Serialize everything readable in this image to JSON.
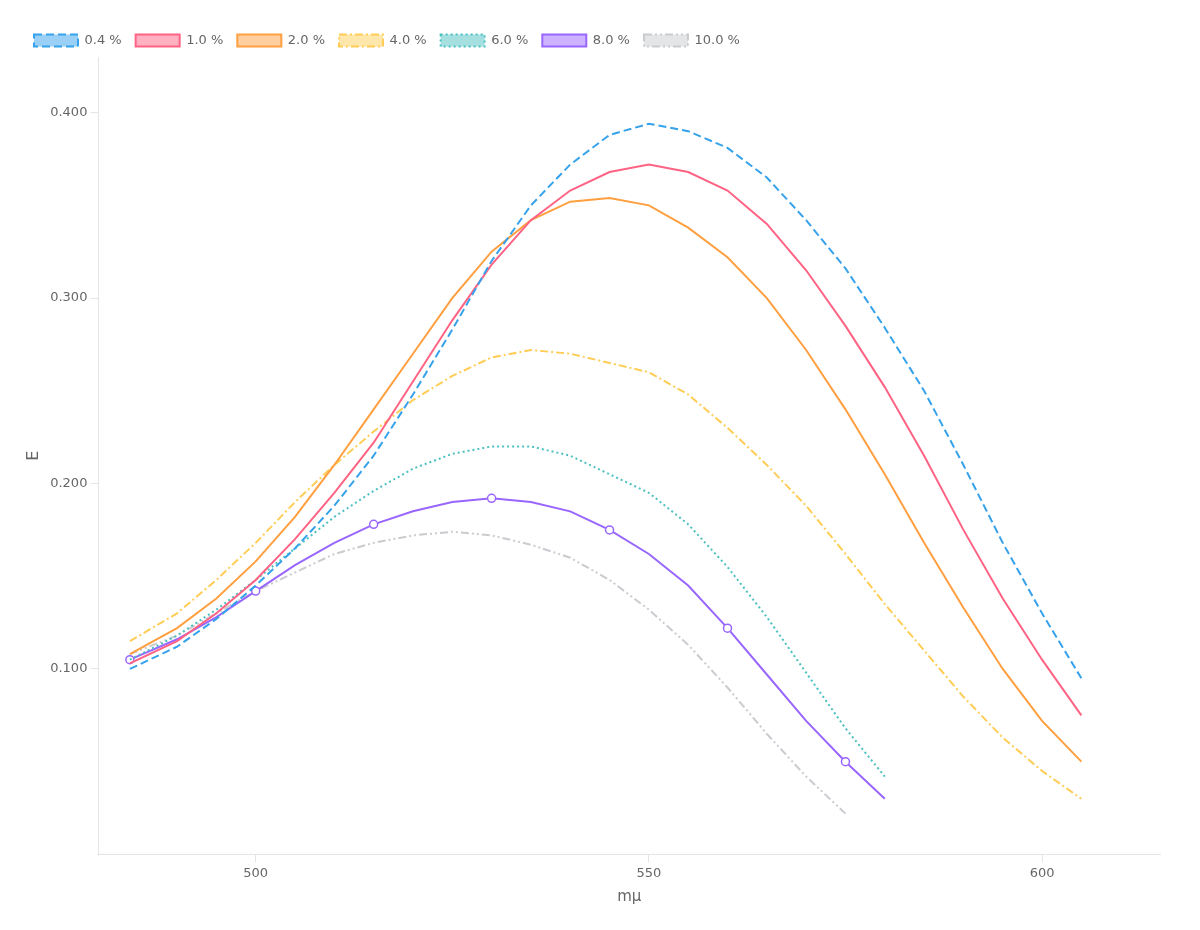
{
  "chart_data": {
    "type": "line",
    "xlabel": "mμ",
    "ylabel": "E",
    "xlim": [
      480,
      615
    ],
    "ylim": [
      0.0,
      0.43
    ],
    "xticks": [
      500,
      550,
      600
    ],
    "yticks": [
      {
        "value": 0.1,
        "label": "0.100"
      },
      {
        "value": 0.2,
        "label": "0.200"
      },
      {
        "value": 0.3,
        "label": "0.300"
      },
      {
        "value": 0.4,
        "label": "0.400"
      }
    ],
    "grid": false,
    "legend": "upper left",
    "series": [
      {
        "name": "0.4 %",
        "line_style": "dashed",
        "x": [
          484,
          490,
          495,
          500,
          505,
          510,
          515,
          520,
          525,
          530,
          535,
          540,
          545,
          550,
          555,
          560,
          565,
          570,
          575,
          580,
          585,
          590,
          595,
          600,
          605
        ],
        "values": [
          0.1,
          0.112,
          0.127,
          0.145,
          0.165,
          0.188,
          0.215,
          0.248,
          0.283,
          0.32,
          0.35,
          0.372,
          0.388,
          0.394,
          0.39,
          0.381,
          0.365,
          0.342,
          0.316,
          0.284,
          0.25,
          0.21,
          0.168,
          0.13,
          0.095
        ]
      },
      {
        "name": "1.0 %",
        "line_style": "solid",
        "x": [
          484,
          490,
          495,
          500,
          505,
          510,
          515,
          520,
          525,
          530,
          535,
          540,
          545,
          550,
          555,
          560,
          565,
          570,
          575,
          580,
          585,
          590,
          595,
          600,
          605
        ],
        "values": [
          0.103,
          0.115,
          0.13,
          0.148,
          0.17,
          0.195,
          0.222,
          0.255,
          0.288,
          0.318,
          0.342,
          0.358,
          0.368,
          0.372,
          0.368,
          0.358,
          0.34,
          0.315,
          0.285,
          0.252,
          0.215,
          0.175,
          0.138,
          0.105,
          0.075
        ]
      },
      {
        "name": "2.0 %",
        "line_style": "solid",
        "x": [
          484,
          490,
          495,
          500,
          505,
          510,
          515,
          520,
          525,
          530,
          535,
          540,
          545,
          550,
          555,
          560,
          565,
          570,
          575,
          580,
          585,
          590,
          595,
          600,
          605
        ],
        "values": [
          0.108,
          0.122,
          0.138,
          0.158,
          0.182,
          0.21,
          0.24,
          0.27,
          0.3,
          0.325,
          0.342,
          0.352,
          0.354,
          0.35,
          0.338,
          0.322,
          0.3,
          0.272,
          0.24,
          0.205,
          0.168,
          0.133,
          0.1,
          0.072,
          0.05
        ]
      },
      {
        "name": "4.0 %",
        "line_style": "dashdot",
        "x": [
          484,
          490,
          495,
          500,
          505,
          510,
          515,
          520,
          525,
          530,
          535,
          540,
          545,
          550,
          555,
          560,
          565,
          570,
          575,
          580,
          585,
          590,
          595,
          600,
          605
        ],
        "values": [
          0.115,
          0.13,
          0.148,
          0.168,
          0.19,
          0.21,
          0.228,
          0.245,
          0.258,
          0.268,
          0.272,
          0.27,
          0.265,
          0.26,
          0.248,
          0.23,
          0.21,
          0.188,
          0.162,
          0.135,
          0.11,
          0.085,
          0.063,
          0.045,
          0.03
        ]
      },
      {
        "name": "6.0 %",
        "line_style": "dotted",
        "x": [
          484,
          490,
          495,
          500,
          505,
          510,
          515,
          520,
          525,
          530,
          535,
          540,
          545,
          550,
          555,
          560,
          565,
          570,
          575,
          580
        ],
        "values": [
          0.105,
          0.118,
          0.132,
          0.148,
          0.165,
          0.182,
          0.196,
          0.208,
          0.216,
          0.22,
          0.22,
          0.215,
          0.205,
          0.195,
          0.178,
          0.155,
          0.128,
          0.098,
          0.068,
          0.042
        ]
      },
      {
        "name": "8.0 %",
        "line_style": "solid",
        "marker": "circle",
        "x": [
          484,
          490,
          495,
          500,
          505,
          510,
          515,
          520,
          525,
          530,
          535,
          540,
          545,
          550,
          555,
          560,
          565,
          570,
          575,
          580
        ],
        "values": [
          0.105,
          0.116,
          0.128,
          0.142,
          0.156,
          0.168,
          0.178,
          0.185,
          0.19,
          0.192,
          0.19,
          0.185,
          0.175,
          0.162,
          0.145,
          0.122,
          0.097,
          0.072,
          0.05,
          0.03
        ]
      },
      {
        "name": "10.0 %",
        "line_style": "dashdotdot",
        "x": [
          484,
          490,
          495,
          500,
          505,
          510,
          515,
          520,
          525,
          530,
          535,
          540,
          545,
          550,
          555,
          560,
          565,
          570,
          575
        ],
        "values": [
          0.108,
          0.118,
          0.13,
          0.142,
          0.152,
          0.162,
          0.168,
          0.172,
          0.174,
          0.172,
          0.167,
          0.16,
          0.148,
          0.132,
          0.113,
          0.09,
          0.065,
          0.042,
          0.022
        ]
      }
    ]
  }
}
